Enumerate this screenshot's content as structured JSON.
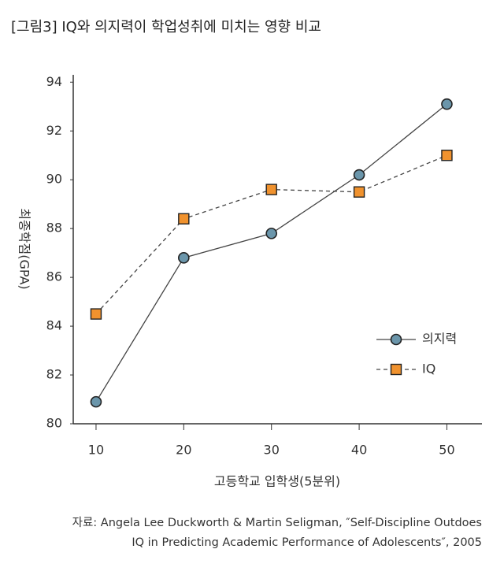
{
  "chart_data": {
    "type": "line",
    "title": "[그림3] IQ와 의지력이 학업성취에 미치는 영향 비교",
    "x_label": "고등학교 입학생(5분위)",
    "y_label": "최종학점(GPA)",
    "x": [
      10,
      20,
      30,
      40,
      50
    ],
    "xlim": [
      7.4,
      54
    ],
    "xticks": [
      10,
      20,
      30,
      40,
      50
    ],
    "ylim": [
      80,
      94.3
    ],
    "yticks": [
      80,
      82,
      84,
      86,
      88,
      90,
      92,
      94
    ],
    "series": [
      {
        "name": "의지력",
        "color": "#6b96ab",
        "marker": "circle",
        "dashed": false,
        "values": [
          80.9,
          86.8,
          87.8,
          90.2,
          93.1
        ]
      },
      {
        "name": "IQ",
        "color": "#f0922e",
        "marker": "square",
        "dashed": true,
        "values": [
          84.5,
          88.4,
          89.6,
          89.5,
          91.0
        ]
      }
    ],
    "legend_position": "right",
    "source": [
      "자료: Angela Lee Duckworth & Martin Seligman, ″Self-Discipline Outdoes",
      "IQ in Predicting Academic Performance of Adolescents″, 2005"
    ]
  }
}
